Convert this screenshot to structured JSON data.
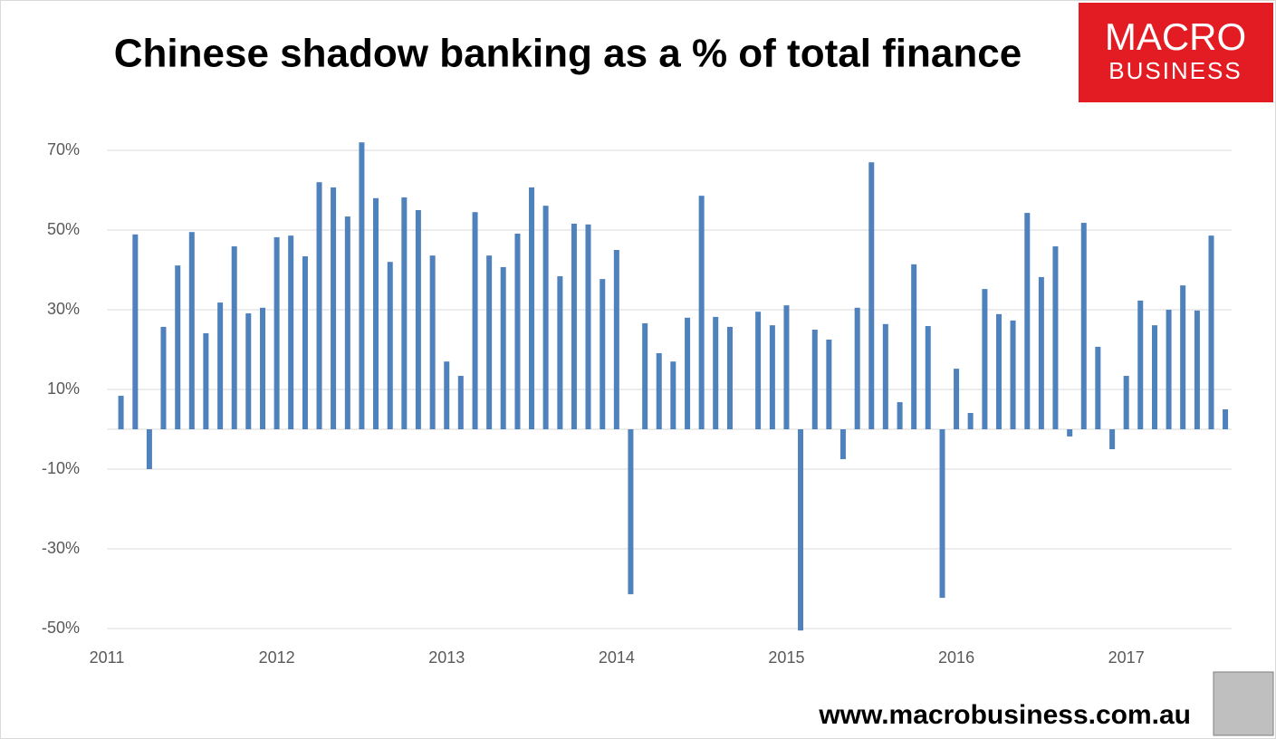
{
  "chart_data": {
    "type": "bar",
    "title": "Chinese shadow banking as a % of total finance",
    "logo": {
      "line1": "MACRO",
      "line2": "BUSINESS"
    },
    "source": "www.macrobusiness.com.au",
    "color": "#4f81bd",
    "grid": true,
    "xlim": [
      2011,
      2017.62
    ],
    "xticks": [
      2011,
      2012,
      2013,
      2014,
      2015,
      2016,
      2017
    ],
    "ylim": [
      -50,
      70
    ],
    "yticks": [
      {
        "value": 70,
        "label": "70%"
      },
      {
        "value": 50,
        "label": "50%"
      },
      {
        "value": 30,
        "label": "30%"
      },
      {
        "value": 10,
        "label": "10%"
      },
      {
        "value": -10,
        "label": "-10%"
      },
      {
        "value": -30,
        "label": "-30%"
      },
      {
        "value": -50,
        "label": "-50%"
      }
    ],
    "x": [
      2011.083,
      2011.167,
      2011.25,
      2011.333,
      2011.417,
      2011.5,
      2011.583,
      2011.667,
      2011.75,
      2011.833,
      2011.917,
      2012,
      2012.083,
      2012.167,
      2012.25,
      2012.333,
      2012.417,
      2012.5,
      2012.583,
      2012.667,
      2012.75,
      2012.833,
      2012.917,
      2013,
      2013.083,
      2013.167,
      2013.25,
      2013.333,
      2013.417,
      2013.5,
      2013.583,
      2013.667,
      2013.75,
      2013.833,
      2013.917,
      2014,
      2014.083,
      2014.167,
      2014.25,
      2014.333,
      2014.417,
      2014.5,
      2014.583,
      2014.667,
      2014.75,
      2014.833,
      2014.917,
      2015,
      2015.083,
      2015.167,
      2015.25,
      2015.333,
      2015.417,
      2015.5,
      2015.583,
      2015.667,
      2015.75,
      2015.833,
      2015.917,
      2016,
      2016.083,
      2016.167,
      2016.25,
      2016.333,
      2016.417,
      2016.5,
      2016.583,
      2016.667,
      2016.75,
      2016.833,
      2016.917,
      2017,
      2017.083,
      2017.167,
      2017.25,
      2017.333,
      2017.417,
      2017.5,
      2017.583
    ],
    "values": [
      8.4,
      48.9,
      -10,
      25.7,
      41.1,
      49.5,
      24.1,
      31.8,
      45.9,
      29.1,
      30.5,
      48.2,
      48.6,
      43.4,
      62,
      60.7,
      53.4,
      72,
      58,
      42,
      58.2,
      55,
      43.6,
      17,
      13.4,
      54.5,
      43.6,
      40.7,
      49.1,
      60.7,
      56.1,
      38.4,
      51.6,
      51.4,
      37.7,
      45,
      -41.4,
      26.6,
      19.1,
      17,
      28,
      58.6,
      28.2,
      25.7,
      null,
      29.5,
      26.1,
      31.1,
      -50.5,
      25,
      22.5,
      -7.5,
      30.5,
      67,
      26.4,
      6.8,
      41.4,
      25.9,
      -42.3,
      15.2,
      4.1,
      35.2,
      28.9,
      27.3,
      54.3,
      38.2,
      45.9,
      -1.8,
      51.8,
      20.7,
      -5,
      13.4,
      32.3,
      26.1,
      30,
      36.1,
      29.8,
      48.6,
      5
    ]
  }
}
